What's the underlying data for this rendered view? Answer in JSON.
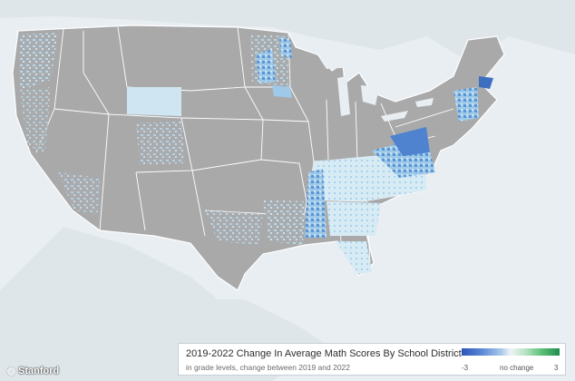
{
  "legend": {
    "title": "2019-2022 Change In Average Math Scores By School District",
    "subtitle": "in grade levels, change between 2019 and 2022",
    "scale_min": "-3",
    "scale_mid": "no change",
    "scale_max": "3",
    "colors": {
      "decline": "#2b55b8",
      "neutral": "#eef3f6",
      "improve": "#1f8a4c",
      "no_data": "#a9a9a9"
    }
  },
  "credit": "Stanford"
}
